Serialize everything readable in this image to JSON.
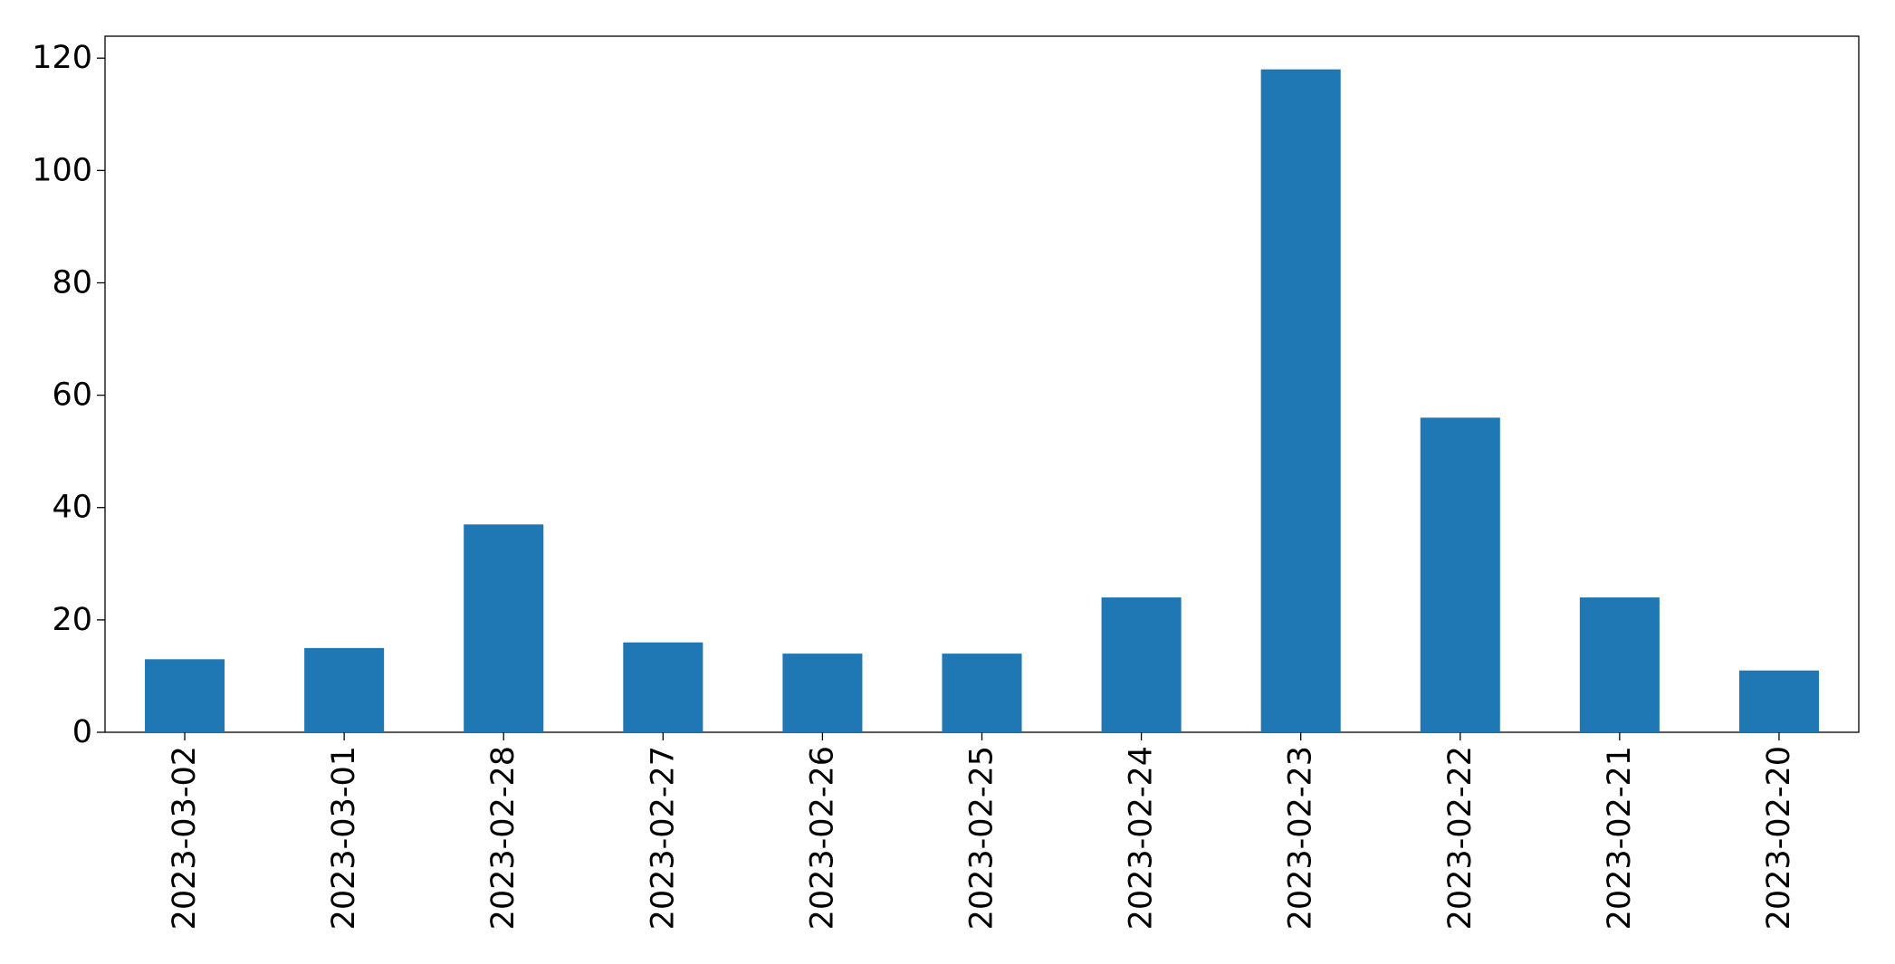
{
  "chart_data": {
    "type": "bar",
    "categories": [
      "2023-03-02",
      "2023-03-01",
      "2023-02-28",
      "2023-02-27",
      "2023-02-26",
      "2023-02-25",
      "2023-02-24",
      "2023-02-23",
      "2023-02-22",
      "2023-02-21",
      "2023-02-20"
    ],
    "values": [
      13,
      15,
      37,
      16,
      14,
      14,
      24,
      118,
      56,
      24,
      11
    ],
    "color": "#1f77b4",
    "ylim": [
      0,
      123.9
    ],
    "yticks": [
      0,
      20,
      40,
      60,
      80,
      100,
      120
    ],
    "grid": false
  }
}
